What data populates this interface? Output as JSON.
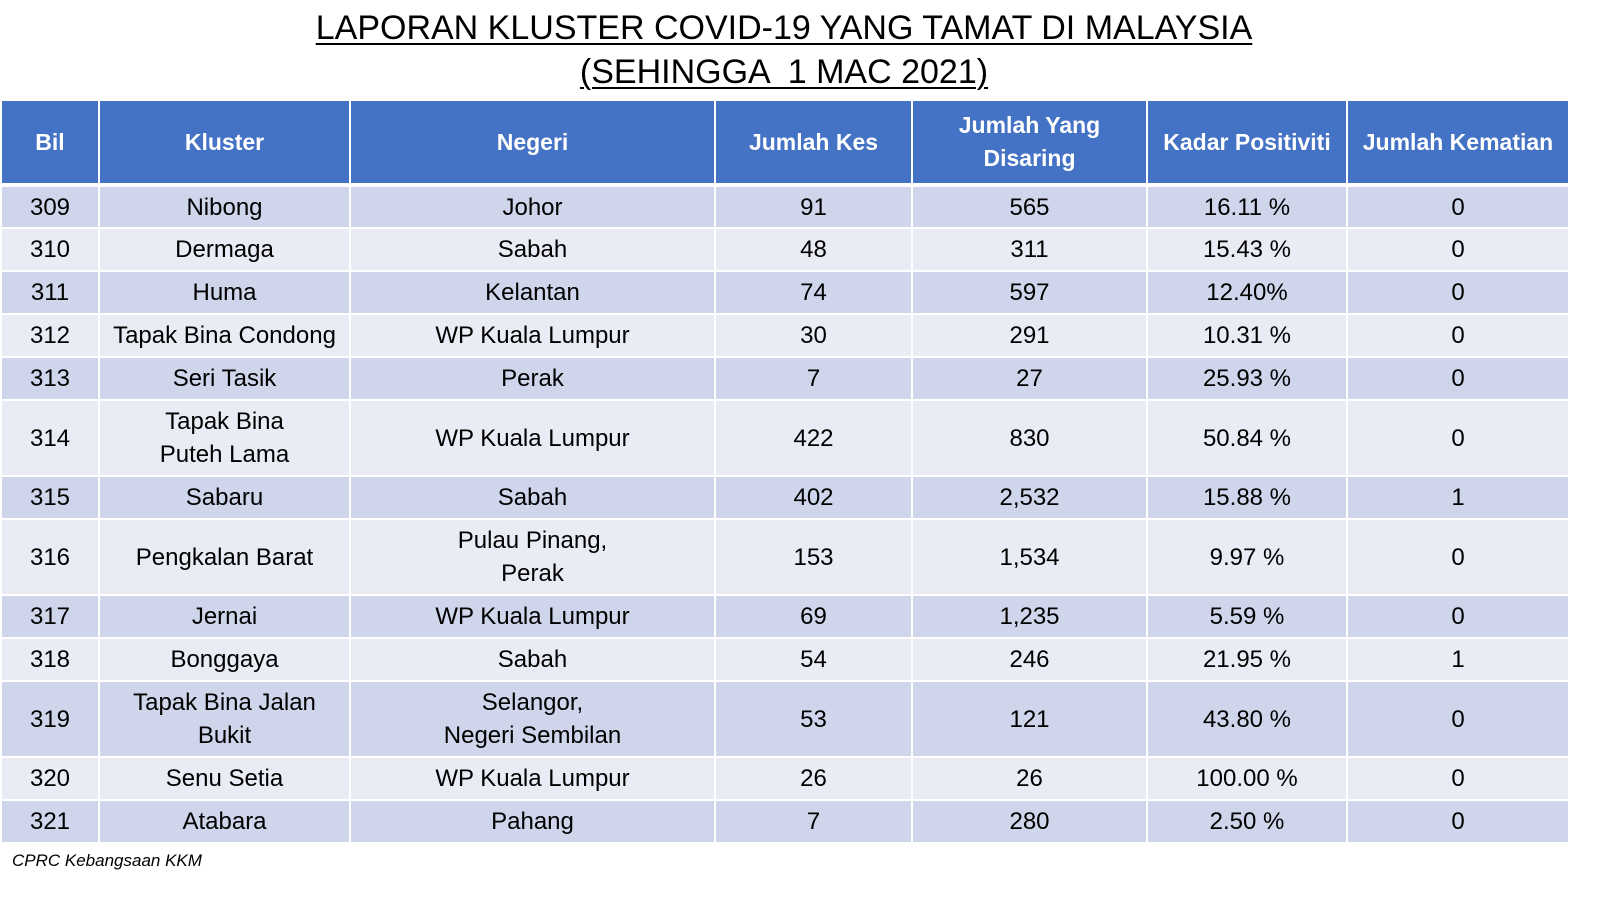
{
  "title": {
    "line1": "LAPORAN KLUSTER COVID-19 YANG TAMAT DI MALAYSIA",
    "line2": "(SEHINGGA  1 MAC 2021)"
  },
  "colors": {
    "header_bg": "#4472c4",
    "row_odd": "#cfd5ea",
    "row_even": "#e9ebf5"
  },
  "table": {
    "headers": {
      "bil": "Bil",
      "kluster": "Kluster",
      "negeri": "Negeri",
      "jumlah_kes": "Jumlah Kes",
      "jumlah_disaring": "Jumlah Yang\nDisaring",
      "kadar_positiviti": "Kadar Positiviti",
      "jumlah_kematian": "Jumlah Kematian"
    },
    "rows": [
      {
        "bil": "309",
        "kluster": "Nibong",
        "negeri": "Johor",
        "kes": "91",
        "disaring": "565",
        "positiviti": "16.11 %",
        "kematian": "0"
      },
      {
        "bil": "310",
        "kluster": "Dermaga",
        "negeri": "Sabah",
        "kes": "48",
        "disaring": "311",
        "positiviti": "15.43 %",
        "kematian": "0"
      },
      {
        "bil": "311",
        "kluster": "Huma",
        "negeri": "Kelantan",
        "kes": "74",
        "disaring": "597",
        "positiviti": "12.40%",
        "kematian": "0"
      },
      {
        "bil": "312",
        "kluster": "Tapak Bina Condong",
        "negeri": "WP Kuala Lumpur",
        "kes": "30",
        "disaring": "291",
        "positiviti": "10.31 %",
        "kematian": "0"
      },
      {
        "bil": "313",
        "kluster": "Seri Tasik",
        "negeri": "Perak",
        "kes": "7",
        "disaring": "27",
        "positiviti": "25.93 %",
        "kematian": "0"
      },
      {
        "bil": "314",
        "kluster": "Tapak Bina\nPuteh Lama",
        "negeri": "WP Kuala Lumpur",
        "kes": "422",
        "disaring": "830",
        "positiviti": "50.84 %",
        "kematian": "0"
      },
      {
        "bil": "315",
        "kluster": "Sabaru",
        "negeri": "Sabah",
        "kes": "402",
        "disaring": "2,532",
        "positiviti": "15.88 %",
        "kematian": "1"
      },
      {
        "bil": "316",
        "kluster": "Pengkalan Barat",
        "negeri": "Pulau Pinang,\nPerak",
        "kes": "153",
        "disaring": "1,534",
        "positiviti": "9.97 %",
        "kematian": "0"
      },
      {
        "bil": "317",
        "kluster": "Jernai",
        "negeri": "WP Kuala Lumpur",
        "kes": "69",
        "disaring": "1,235",
        "positiviti": "5.59 %",
        "kematian": "0"
      },
      {
        "bil": "318",
        "kluster": "Bonggaya",
        "negeri": "Sabah",
        "kes": "54",
        "disaring": "246",
        "positiviti": "21.95 %",
        "kematian": "1"
      },
      {
        "bil": "319",
        "kluster": "Tapak Bina Jalan\nBukit",
        "negeri": "Selangor,\nNegeri Sembilan",
        "kes": "53",
        "disaring": "121",
        "positiviti": "43.80 %",
        "kematian": "0"
      },
      {
        "bil": "320",
        "kluster": "Senu Setia",
        "negeri": "WP Kuala Lumpur",
        "kes": "26",
        "disaring": "26",
        "positiviti": "100.00 %",
        "kematian": "0"
      },
      {
        "bil": "321",
        "kluster": "Atabara",
        "negeri": "Pahang",
        "kes": "7",
        "disaring": "280",
        "positiviti": "2.50 %",
        "kematian": "0"
      }
    ]
  },
  "footer": {
    "source": "CPRC Kebangsaan KKM"
  }
}
